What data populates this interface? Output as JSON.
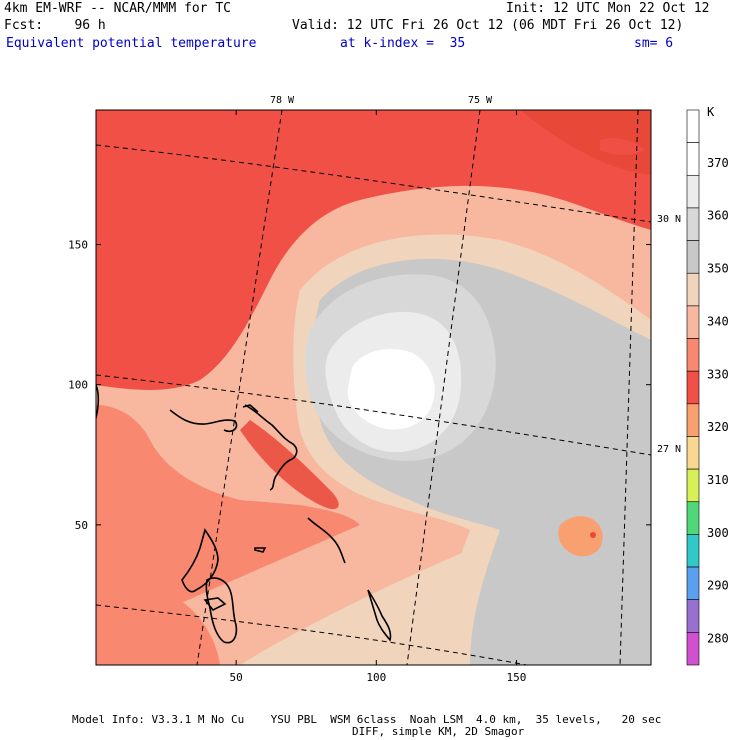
{
  "header": {
    "line1_left": "4km EM-WRF -- NCAR/MMM for TC",
    "line1_right": "Init: 12 UTC Mon 22 Oct 12",
    "line2_left": "Fcst:    96 h",
    "line2_right": "Valid: 12 UTC Fri 26 Oct 12 (06 MDT Fri 26 Oct 12)",
    "line3_field": "Equivalent potential temperature",
    "line3_level": "at k-index =  35",
    "line3_smooth": "sm= 6"
  },
  "footer": {
    "line1": "Model Info: V3.3.1 M No Cu    YSU PBL  WSM 6class  Noah LSM  4.0 km,  35 levels,   20 sec",
    "line2": "DIFF, simple KM, 2D Smagor"
  },
  "map_labels": {
    "lon": [
      "78 W",
      "75 W"
    ],
    "lat": [
      "30 N",
      "27 N"
    ]
  },
  "colorbar": {
    "unit": "K",
    "ticks": [
      "280",
      "290",
      "300",
      "310",
      "320",
      "330",
      "340",
      "350",
      "360",
      "370"
    ],
    "levels": [
      {
        "value": 275,
        "color": "#d050d0"
      },
      {
        "value": 285,
        "color": "#9870d0"
      },
      {
        "value": 295,
        "color": "#5aa0f0"
      },
      {
        "value": 305,
        "color": "#30c8c8"
      },
      {
        "value": 315,
        "color": "#50d878"
      },
      {
        "value": 325,
        "color": "#d8f058"
      },
      {
        "value": 330,
        "color": "#f8d890"
      },
      {
        "value": 335,
        "color": "#f8a070"
      },
      {
        "value": 340,
        "color": "#f05046"
      },
      {
        "value": 345,
        "color": "#f88870"
      },
      {
        "value": 350,
        "color": "#f8b8a0"
      },
      {
        "value": 355,
        "color": "#f0d4bc"
      },
      {
        "value": 360,
        "color": "#c8c8c8"
      },
      {
        "value": 365,
        "color": "#d8d8d8"
      },
      {
        "value": 370,
        "color": "#ececec"
      },
      {
        "value": 375,
        "color": "#ffffff"
      },
      {
        "value": 380,
        "color": "#ffffff"
      }
    ]
  },
  "chart_data": {
    "type": "heatmap",
    "xlim": [
      0,
      198
    ],
    "ylim": [
      0,
      198
    ],
    "xticks": [
      "50",
      "100",
      "150"
    ],
    "yticks": [
      "50",
      "100",
      "150"
    ],
    "xtick_values": [
      50,
      100,
      150
    ],
    "ytick_values": [
      50,
      100,
      150
    ],
    "storm_center": [
      100,
      97
    ]
  }
}
